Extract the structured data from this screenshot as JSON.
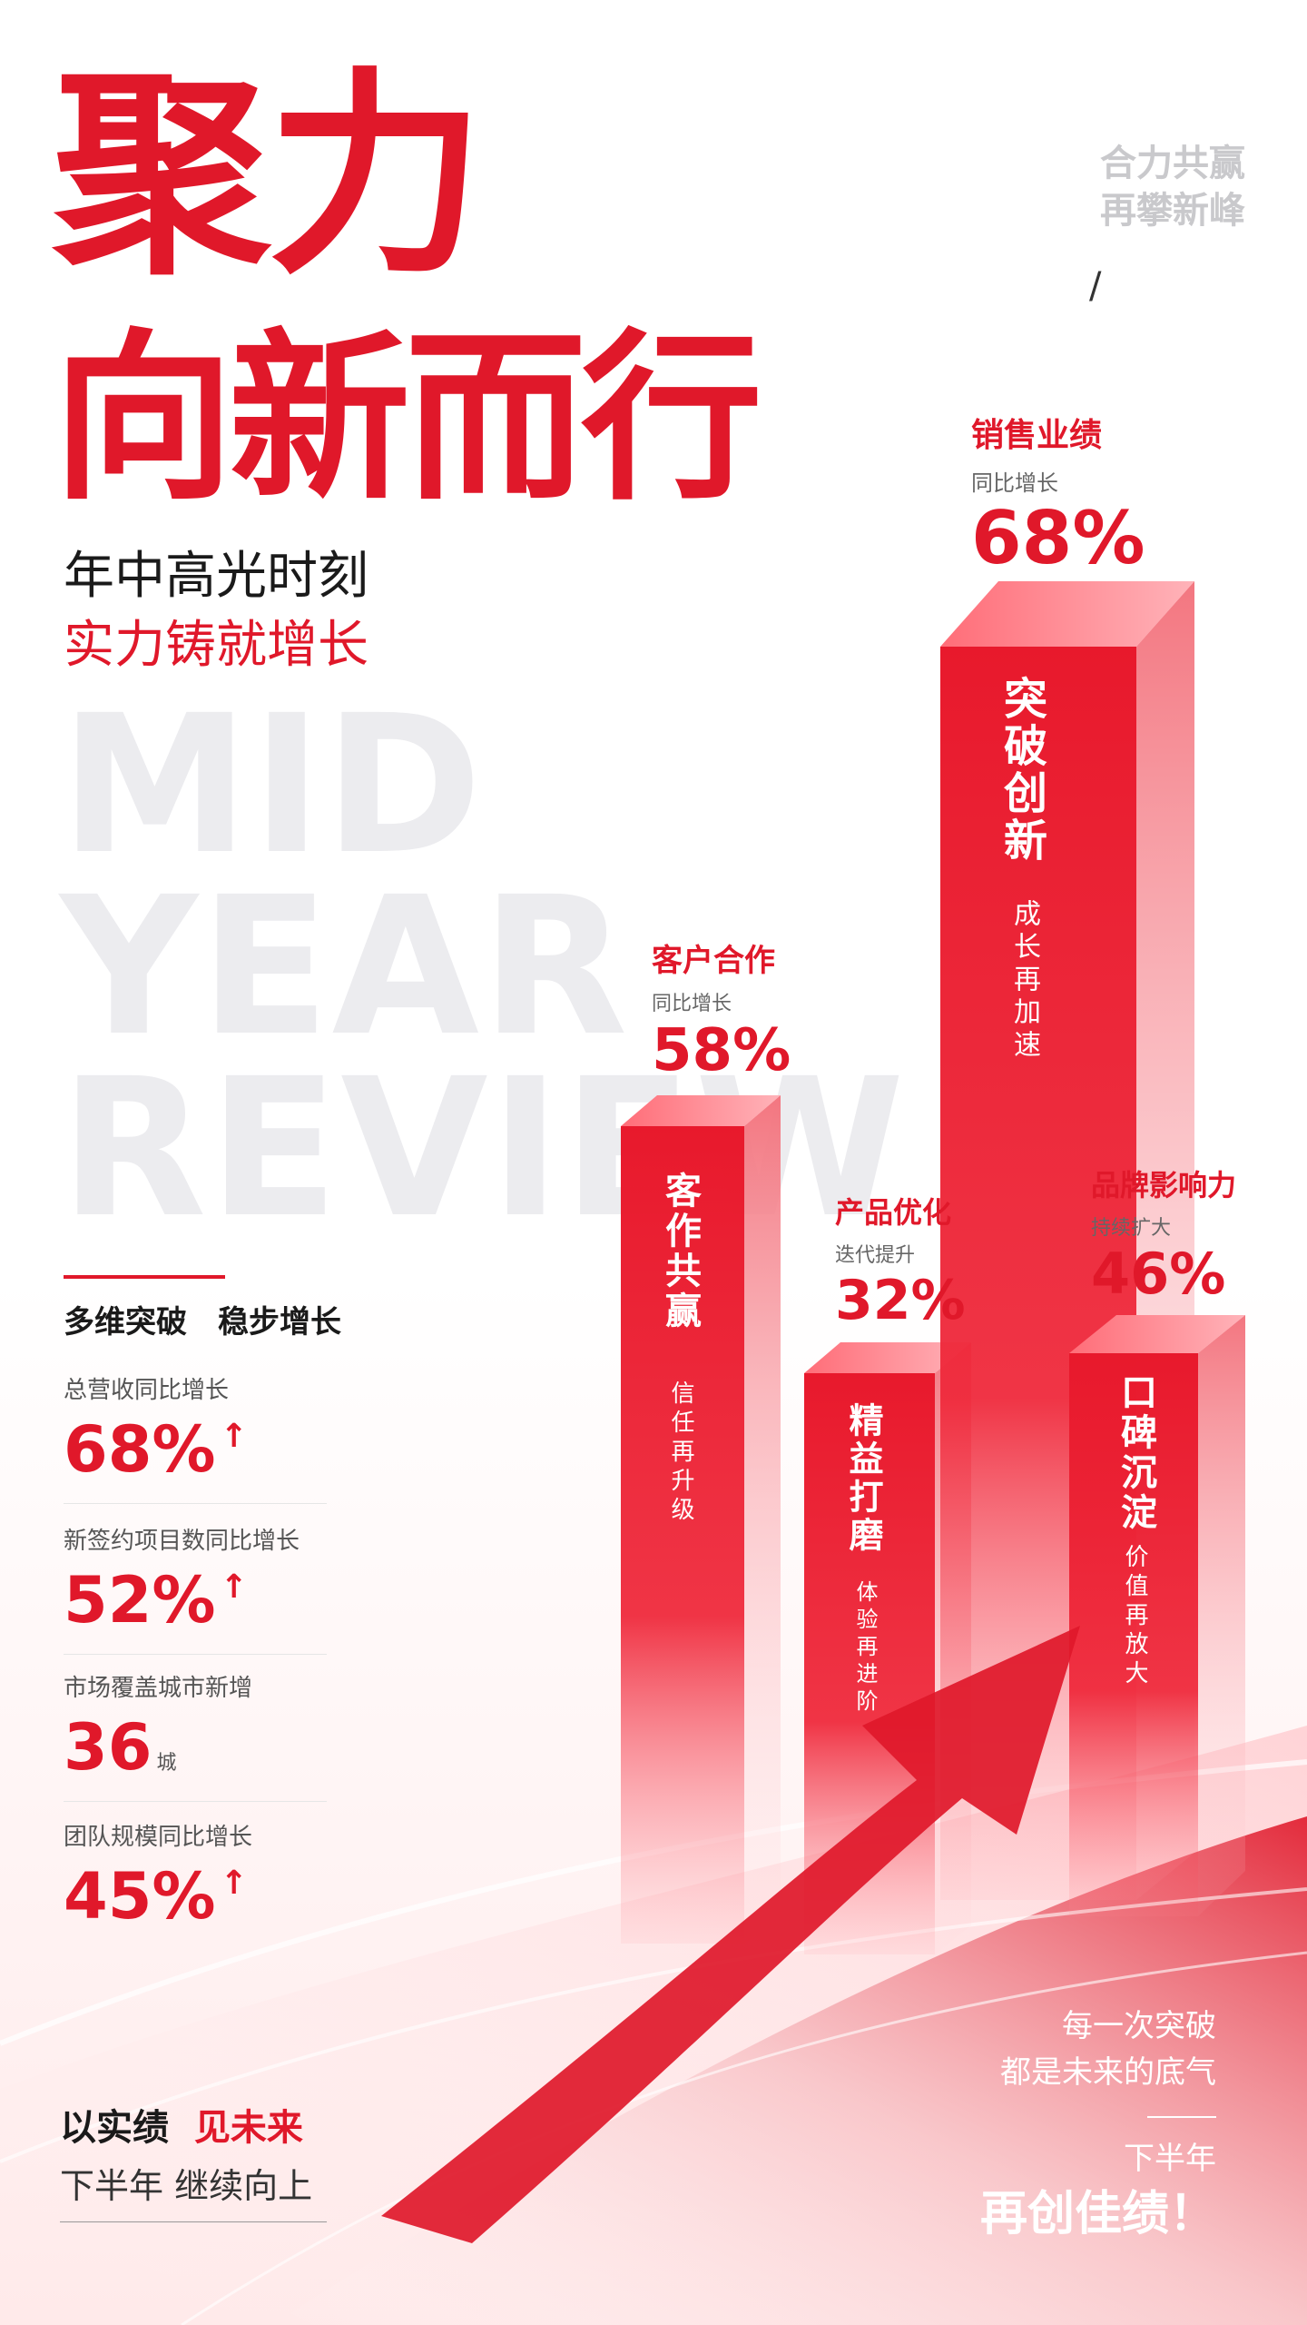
{
  "title": {
    "line1": "聚力",
    "line2": "向新而行"
  },
  "subtitle": {
    "line1": "年中高光时刻",
    "line2": "实力铸就增长"
  },
  "bg_words": [
    "MID",
    "YEAR",
    "REVIEW"
  ],
  "top_tag": {
    "line1": "合力共赢",
    "line2": "再攀新峰",
    "mark": "/"
  },
  "left_section": {
    "heading": "多维突破　稳步增长"
  },
  "stats": [
    {
      "label": "总营收同比增长",
      "value": "68%",
      "arrow": "↑",
      "unit": ""
    },
    {
      "label": "新签约项目数同比增长",
      "value": "52%",
      "arrow": "↑",
      "unit": ""
    },
    {
      "label": "市场覆盖城市新增",
      "value": "36",
      "arrow": "",
      "unit": "城"
    },
    {
      "label": "团队规模同比增长",
      "value": "45%",
      "arrow": "↑",
      "unit": ""
    }
  ],
  "bars": [
    {
      "label_title": "客户合作",
      "label_sub": "同比增长",
      "pct": "58%",
      "bar_title": "客作共赢",
      "bar_sub": "信任再升级"
    },
    {
      "label_title": "产品优化",
      "label_sub": "迭代提升",
      "pct": "32%",
      "bar_title": "精益打磨",
      "bar_sub": "体验再进阶"
    },
    {
      "label_title": "销售业绩",
      "label_sub": "同比增长",
      "pct": "68%",
      "bar_title": "突破创新",
      "bar_sub": "成长再加速"
    },
    {
      "label_title": "品牌影响力",
      "label_sub": "持续扩大",
      "pct": "46%",
      "bar_title": "口碑沉淀",
      "bar_sub": "价值再放大"
    }
  ],
  "footer_left": {
    "line1a": "以实绩",
    "line1b": "见未来",
    "line2": "下半年 继续向上"
  },
  "footer_right": {
    "line1": "每一次突破",
    "line2": "都是未来的底气",
    "line3": "下半年",
    "line4": "再创佳绩！"
  },
  "colors": {
    "accent": "#e0182a",
    "muted": "#c9c9cc",
    "bg_word": "#ececef"
  }
}
